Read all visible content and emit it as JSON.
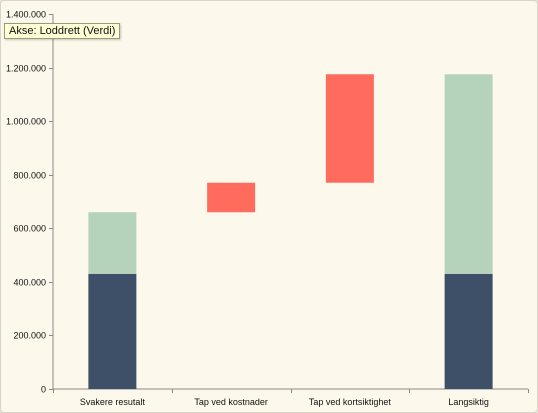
{
  "tooltip": {
    "text": "Akse: Loddrett (Verdi)"
  },
  "colors": {
    "base": "#3d5068",
    "increase": "#b5d3bb",
    "loss": "#ff6b5c",
    "axis": "#8a8a8a",
    "background": "#fdf8ec"
  },
  "chart_data": {
    "type": "bar",
    "stacked": true,
    "title": "",
    "xlabel": "",
    "ylabel": "",
    "ylim": [
      0,
      1400000
    ],
    "yticks": [
      0,
      200000,
      400000,
      600000,
      800000,
      1000000,
      1200000,
      1400000
    ],
    "ytick_labels": [
      "0",
      "200.000",
      "400.000",
      "600.000",
      "800.000",
      "1.000.000",
      "1.200.000",
      "1.400.000"
    ],
    "categories": [
      "Svakere resutalt",
      "Tap ved kostnader",
      "Tap ved kortsiktighet",
      "Langsiktig"
    ],
    "segments": [
      {
        "category": "Svakere resutalt",
        "from": 0,
        "to": 430000,
        "color_key": "base"
      },
      {
        "category": "Svakere resutalt",
        "from": 430000,
        "to": 660000,
        "color_key": "increase"
      },
      {
        "category": "Tap ved kostnader",
        "from": 660000,
        "to": 770000,
        "color_key": "loss"
      },
      {
        "category": "Tap ved kortsiktighet",
        "from": 770000,
        "to": 1175000,
        "color_key": "loss"
      },
      {
        "category": "Langsiktig",
        "from": 0,
        "to": 430000,
        "color_key": "base"
      },
      {
        "category": "Langsiktig",
        "from": 430000,
        "to": 1175000,
        "color_key": "increase"
      }
    ],
    "grid": false,
    "legend": "none"
  }
}
